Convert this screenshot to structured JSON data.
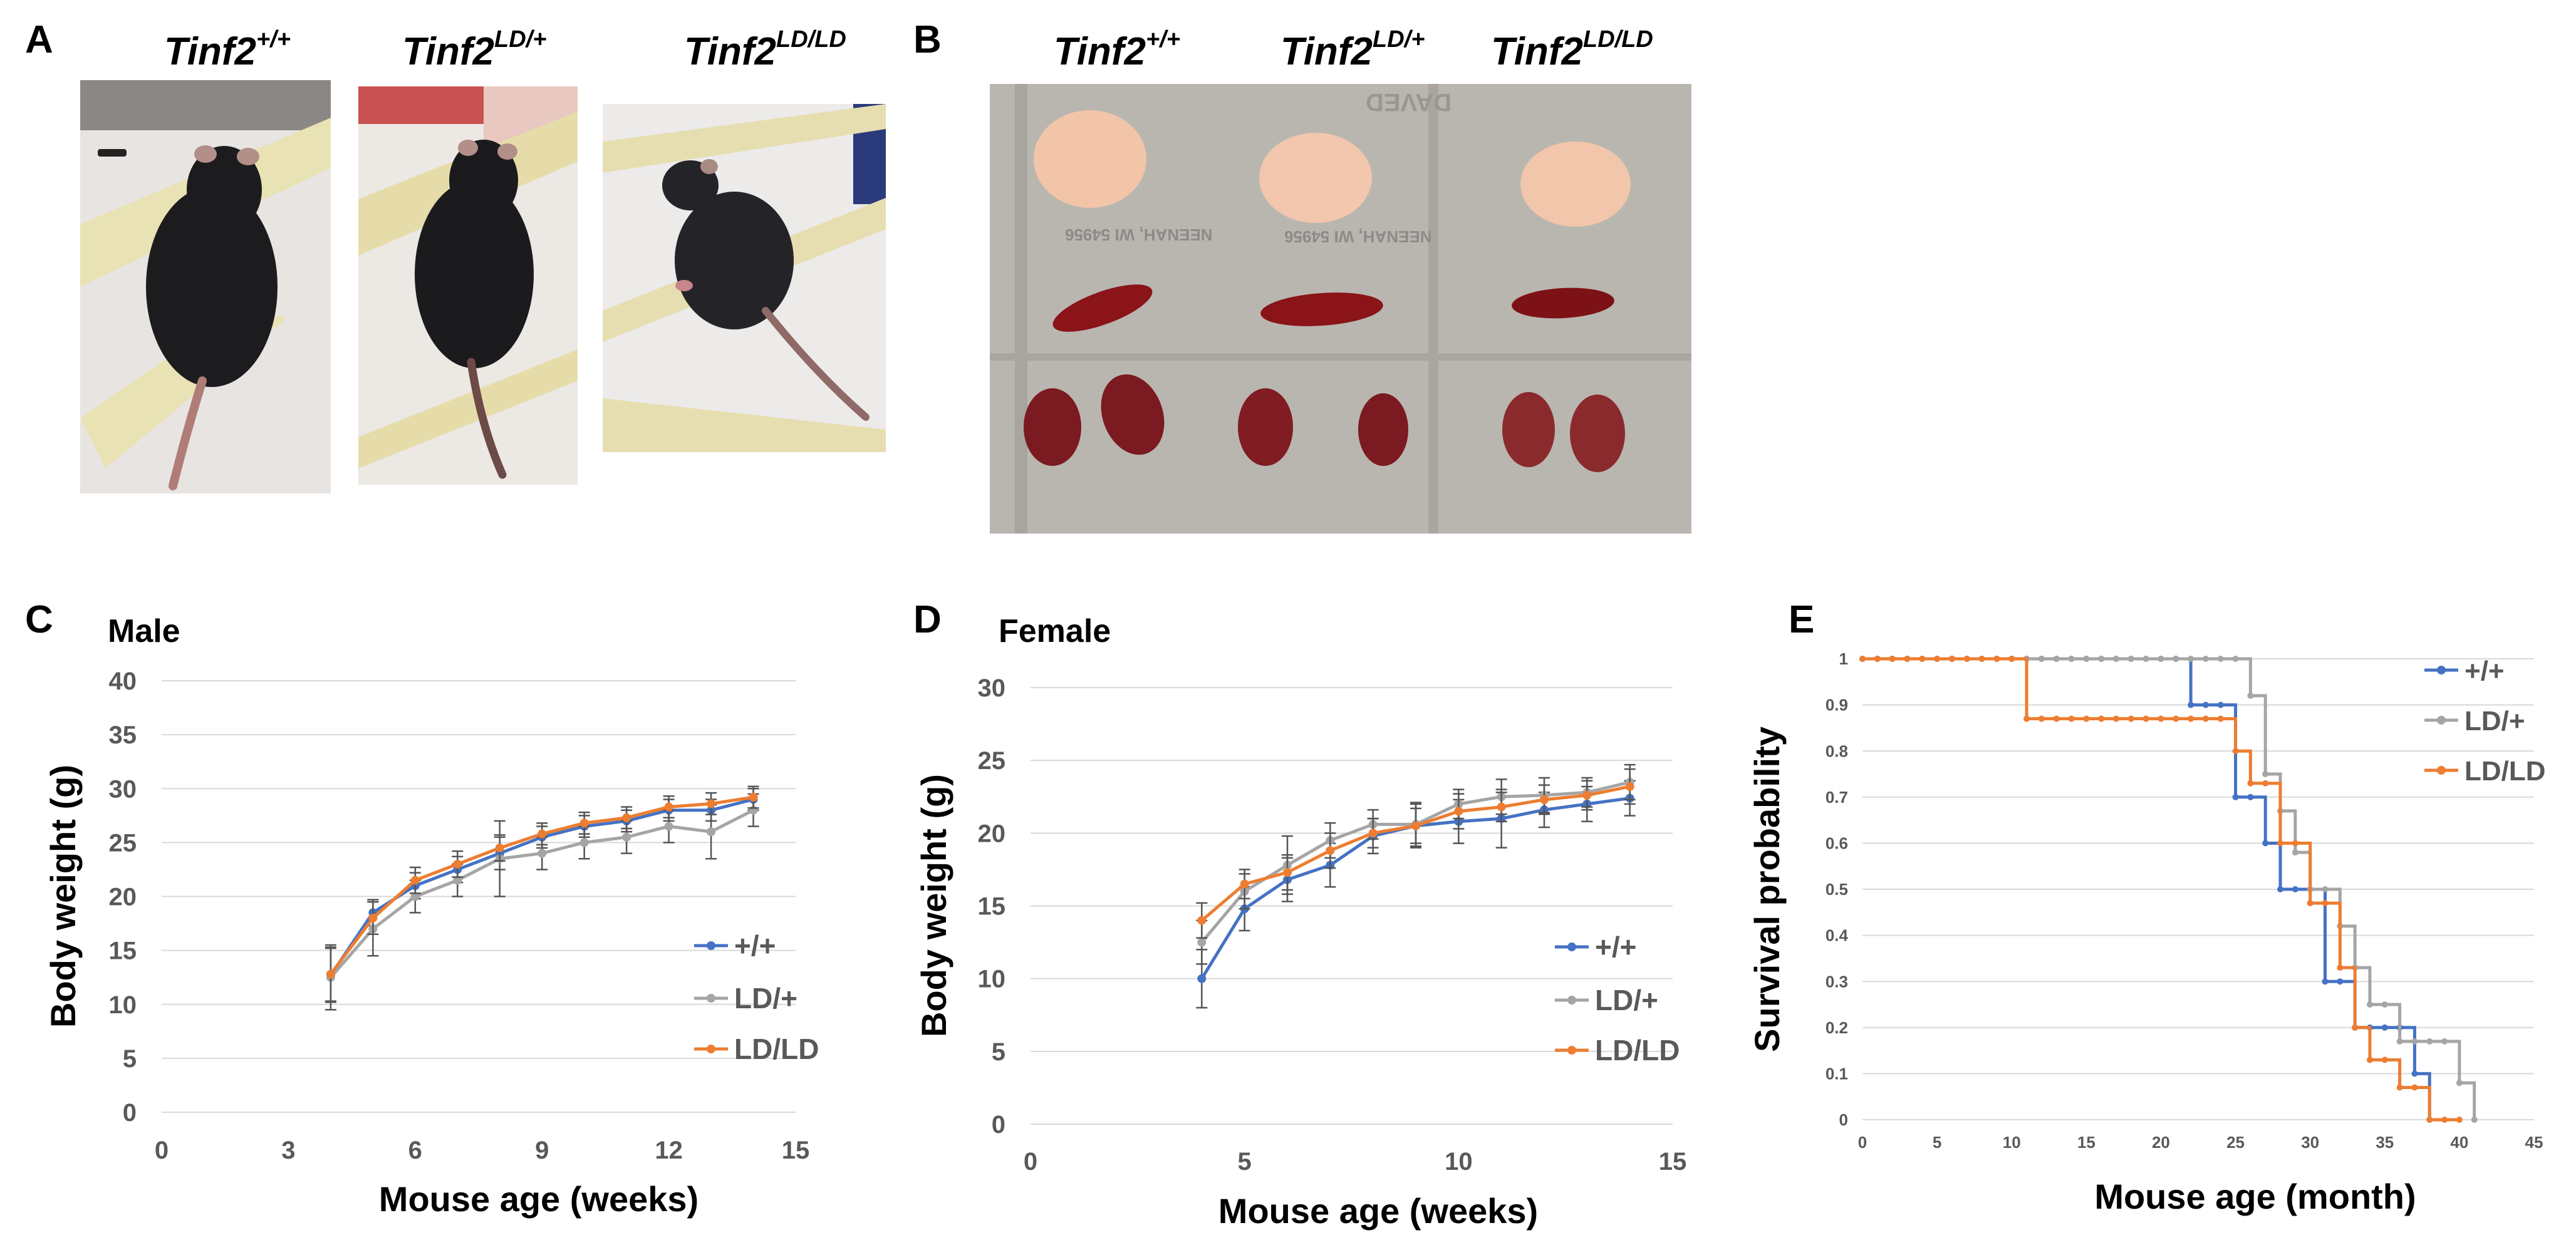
{
  "panels": {
    "A": {
      "letter": "A",
      "genotypes": [
        {
          "base": "Tinf2",
          "sup": "+/+"
        },
        {
          "base": "Tinf2",
          "sup": "LD/+"
        },
        {
          "base": "Tinf2",
          "sup": "LD/LD"
        }
      ]
    },
    "B": {
      "letter": "B",
      "genotypes": [
        {
          "base": "Tinf2",
          "sup": "+/+"
        },
        {
          "base": "Tinf2",
          "sup": "LD/+"
        },
        {
          "base": "Tinf2",
          "sup": "LD/LD"
        }
      ],
      "mat_text": [
        "NEENAH, WI 54956",
        "NEENAH, WI 54956",
        "DAVED"
      ]
    },
    "C": {
      "letter": "C"
    },
    "D": {
      "letter": "D"
    },
    "E": {
      "letter": "E"
    }
  },
  "colors": {
    "wt": "#4472C4",
    "het": "#A5A5A5",
    "hom": "#ED7D31",
    "grid": "#D9D9D9",
    "axis_text": "#595959"
  },
  "chart_data": [
    {
      "id": "C",
      "type": "line",
      "title": "Male",
      "xlabel": "Mouse age (weeks)",
      "ylabel": "Body weight (g)",
      "xlim": [
        0,
        15
      ],
      "ylim": [
        0,
        40
      ],
      "xticks": [
        0,
        3,
        6,
        9,
        12,
        15
      ],
      "yticks": [
        0,
        5,
        10,
        15,
        20,
        25,
        30,
        35,
        40
      ],
      "grid": true,
      "legend_position": "right",
      "x": [
        4,
        5,
        6,
        7,
        8,
        9,
        10,
        11,
        12,
        13,
        14
      ],
      "series": [
        {
          "name": "+/+",
          "color_key": "wt",
          "values": [
            12.7,
            18.5,
            21.0,
            22.5,
            24.0,
            25.5,
            26.5,
            27.0,
            28.0,
            28.0,
            29.0
          ],
          "errors": [
            2.5,
            1.2,
            1.2,
            1.2,
            1.5,
            1.0,
            1.0,
            1.0,
            1.0,
            1.0,
            1.0
          ]
        },
        {
          "name": "LD/+",
          "color_key": "het",
          "values": [
            12.5,
            17.0,
            20.0,
            21.5,
            23.5,
            24.0,
            25.0,
            25.5,
            26.5,
            26.0,
            28.0
          ],
          "errors": [
            3.0,
            2.5,
            1.5,
            1.5,
            3.5,
            1.5,
            1.5,
            1.5,
            1.5,
            2.5,
            1.5
          ]
        },
        {
          "name": "LD/LD",
          "color_key": "hom",
          "values": [
            12.8,
            18.0,
            21.5,
            23.0,
            24.5,
            25.8,
            26.8,
            27.3,
            28.3,
            28.6,
            29.2
          ],
          "errors": [
            2.5,
            1.5,
            1.2,
            1.2,
            1.2,
            1.0,
            1.0,
            1.0,
            1.0,
            1.0,
            1.0
          ]
        }
      ]
    },
    {
      "id": "D",
      "type": "line",
      "title": "Female",
      "xlabel": "Mouse age (weeks)",
      "ylabel": "Body weight (g)",
      "xlim": [
        0,
        15
      ],
      "ylim": [
        0,
        30
      ],
      "xticks": [
        0,
        5,
        10,
        15
      ],
      "yticks": [
        0,
        5,
        10,
        15,
        20,
        25,
        30
      ],
      "grid": true,
      "legend_position": "right",
      "x": [
        4,
        5,
        6,
        7,
        8,
        9,
        10,
        11,
        12,
        13,
        14
      ],
      "series": [
        {
          "name": "+/+",
          "color_key": "wt",
          "values": [
            10.0,
            14.8,
            16.8,
            17.8,
            19.8,
            20.5,
            20.8,
            21.0,
            21.6,
            22.0,
            22.4
          ],
          "errors": [
            2.0,
            1.5,
            1.5,
            1.5,
            1.2,
            1.5,
            1.5,
            2.0,
            1.2,
            1.2,
            1.2
          ]
        },
        {
          "name": "LD/+",
          "color_key": "het",
          "values": [
            12.5,
            16.0,
            17.8,
            19.5,
            20.6,
            20.6,
            22.0,
            22.5,
            22.6,
            22.8,
            23.5
          ],
          "errors": [
            1.5,
            1.2,
            2.0,
            1.2,
            1.0,
            1.5,
            1.0,
            1.2,
            1.2,
            1.0,
            1.2
          ]
        },
        {
          "name": "LD/LD",
          "color_key": "hom",
          "values": [
            14.0,
            16.5,
            17.3,
            18.8,
            20.0,
            20.5,
            21.5,
            21.8,
            22.3,
            22.6,
            23.2
          ],
          "errors": [
            1.2,
            1.0,
            1.2,
            1.2,
            1.0,
            1.2,
            1.2,
            1.0,
            1.0,
            1.0,
            1.2
          ]
        }
      ]
    },
    {
      "id": "E",
      "type": "line",
      "step": true,
      "xlabel": "Mouse age (month)",
      "ylabel": "Survival probability",
      "xlim": [
        0,
        45
      ],
      "ylim": [
        0,
        1
      ],
      "xticks": [
        0,
        5,
        10,
        15,
        20,
        25,
        30,
        35,
        40,
        45
      ],
      "yticks": [
        0,
        0.1,
        0.2,
        0.3,
        0.4,
        0.5,
        0.6,
        0.7,
        0.8,
        0.9,
        1
      ],
      "grid": true,
      "legend_position": "top-right",
      "series": [
        {
          "name": "+/+",
          "color_key": "wt",
          "x": [
            0,
            21,
            22,
            24,
            25,
            26,
            27,
            28,
            30,
            31,
            33,
            35,
            37,
            38
          ],
          "values": [
            1,
            1,
            0.9,
            0.9,
            0.7,
            0.7,
            0.6,
            0.5,
            0.5,
            0.3,
            0.2,
            0.2,
            0.1,
            0
          ]
        },
        {
          "name": "LD/+",
          "color_key": "het",
          "x": [
            0,
            25,
            26,
            27,
            28,
            29,
            30,
            32,
            33,
            34,
            36,
            38,
            40,
            41
          ],
          "values": [
            1,
            1,
            0.92,
            0.75,
            0.67,
            0.58,
            0.5,
            0.42,
            0.33,
            0.25,
            0.17,
            0.17,
            0.08,
            0
          ]
        },
        {
          "name": "LD/LD",
          "color_key": "hom",
          "x": [
            0,
            10,
            11,
            24,
            25,
            26,
            27,
            28,
            29,
            30,
            31,
            32,
            33,
            34,
            35,
            36,
            37,
            38,
            40
          ],
          "values": [
            1,
            1,
            0.87,
            0.87,
            0.8,
            0.73,
            0.73,
            0.6,
            0.6,
            0.47,
            0.47,
            0.33,
            0.2,
            0.13,
            0.13,
            0.07,
            0.07,
            0,
            0
          ]
        }
      ]
    }
  ]
}
